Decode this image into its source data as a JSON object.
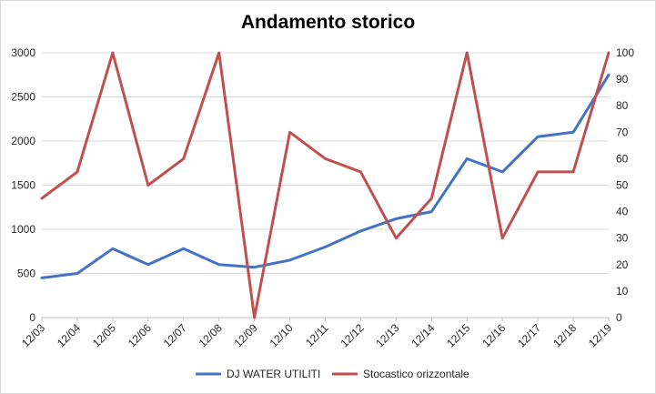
{
  "chart_data": {
    "type": "line",
    "title": "Andamento storico",
    "x_ticks": [
      "12/03",
      "12/04",
      "12/05",
      "12/06",
      "12/07",
      "12/08",
      "12/09",
      "12/10",
      "12/11",
      "12/12",
      "12/13",
      "12/14",
      "12/15",
      "12/16",
      "12/17",
      "12/18",
      "12/19"
    ],
    "y_left": {
      "ylim": [
        0,
        3000
      ],
      "ticks": [
        "0",
        "500",
        "1000",
        "1500",
        "2000",
        "2500",
        "3000"
      ]
    },
    "y_right": {
      "ylim": [
        0,
        100
      ],
      "ticks": [
        "0",
        "10",
        "20",
        "30",
        "40",
        "50",
        "60",
        "70",
        "80",
        "90",
        "100"
      ]
    },
    "grid": "horizontal",
    "legend_position": "bottom",
    "series": [
      {
        "name": "DJ WATER UTILITI",
        "axis": "left",
        "color": "#4472C4",
        "x": [
          "12/03",
          "12/04",
          "12/05",
          "12/06",
          "12/07",
          "12/08",
          "12/09",
          "12/10",
          "12/11",
          "12/12",
          "12/13",
          "12/14",
          "12/15",
          "12/16",
          "12/17",
          "12/18",
          "12/19"
        ],
        "values": [
          450,
          500,
          780,
          600,
          780,
          600,
          570,
          650,
          800,
          980,
          1120,
          1200,
          1800,
          1650,
          2050,
          2100,
          2750
        ]
      },
      {
        "name": "Stocastico orizzontale",
        "axis": "right",
        "color": "#C0504D",
        "x": [
          "12/03",
          "12/04",
          "12/05",
          "12/06",
          "12/07",
          "12/08",
          "12/09",
          "12/10",
          "12/11",
          "12/12",
          "12/13",
          "12/14",
          "12/15",
          "12/16",
          "12/17",
          "12/18",
          "12/19"
        ],
        "values": [
          45,
          55,
          100,
          50,
          60,
          100,
          0,
          70,
          60,
          55,
          30,
          45,
          100,
          30,
          55,
          55,
          100
        ]
      }
    ]
  }
}
